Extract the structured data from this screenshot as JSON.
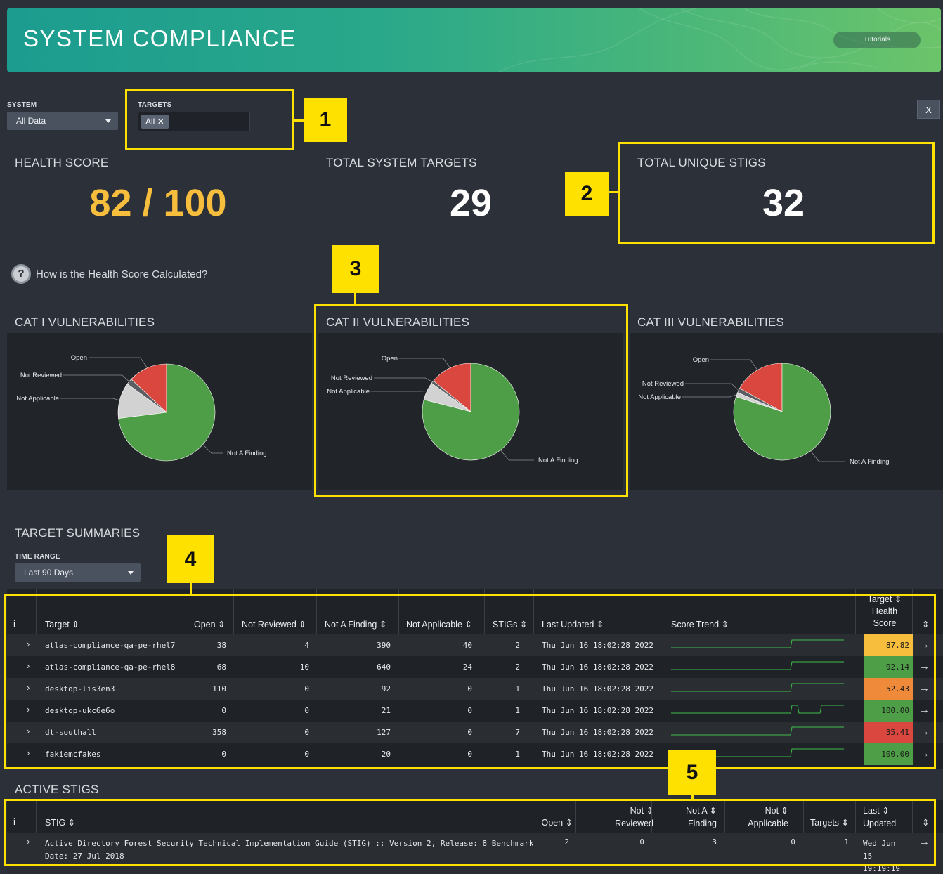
{
  "header": {
    "title": "SYSTEM COMPLIANCE",
    "tutorials_label": "Tutorials"
  },
  "filters": {
    "system_label": "SYSTEM",
    "system_value": "All Data",
    "targets_label": "TARGETS",
    "targets_chip": "All",
    "close_label": "X"
  },
  "stats": {
    "health_label": "HEALTH SCORE",
    "health_value": "82 / 100",
    "targets_label": "TOTAL SYSTEM TARGETS",
    "targets_value": "29",
    "stigs_label": "TOTAL UNIQUE STIGS",
    "stigs_value": "32"
  },
  "help_text": "How is the Health Score Calculated?",
  "colors": {
    "accent_score": "#f7bd3c",
    "open": "#d9473e",
    "not_reviewed": "#5a5d62",
    "not_applicable": "#d2d2d2",
    "not_a_finding": "#4e9d47"
  },
  "vulnerabilities": [
    {
      "title": "CAT I VULNERABILITIES"
    },
    {
      "title": "CAT II VULNERABILITIES"
    },
    {
      "title": "CAT III VULNERABILITIES"
    }
  ],
  "chart_data": [
    {
      "type": "pie",
      "title": "CAT I VULNERABILITIES",
      "labels": [
        "Open",
        "Not Reviewed",
        "Not Applicable",
        "Not A Finding"
      ],
      "values": [
        13,
        2,
        12,
        73
      ]
    },
    {
      "type": "pie",
      "title": "CAT II VULNERABILITIES",
      "labels": [
        "Open",
        "Not Reviewed",
        "Not Applicable",
        "Not A Finding"
      ],
      "values": [
        14,
        1,
        6,
        79
      ]
    },
    {
      "type": "pie",
      "title": "CAT III VULNERABILITIES",
      "labels": [
        "Open",
        "Not Reviewed",
        "Not Applicable",
        "Not A Finding"
      ],
      "values": [
        17,
        1.5,
        1.5,
        80
      ]
    }
  ],
  "summaries": {
    "title": "TARGET SUMMARIES",
    "time_range_label": "TIME RANGE",
    "time_range_value": "Last 90 Days",
    "info_label": "i",
    "headers": {
      "target": "Target ⇕",
      "open": "Open ⇕",
      "not_reviewed": "Not Reviewed ⇕",
      "not_a_finding": "Not A Finding ⇕",
      "not_applicable": "Not Applicable ⇕",
      "stigs": "STIGs ⇕",
      "last_updated": "Last Updated ⇕",
      "score_trend": "Score Trend ⇕",
      "target_l1": "Target ⇕",
      "target_l2": "Health",
      "target_l3": "Score",
      "sort": "⇕"
    },
    "rows": [
      {
        "target": "atlas-compliance-qa-pe-rhel7",
        "open": "38",
        "not_reviewed": "4",
        "not_a_finding": "390",
        "not_applicable": "40",
        "stigs": "2",
        "last_updated": "Thu Jun 16 18:02:28 2022",
        "score": "87.82",
        "score_color": "#f7bd3c"
      },
      {
        "target": "atlas-compliance-qa-pe-rhel8",
        "open": "68",
        "not_reviewed": "10",
        "not_a_finding": "640",
        "not_applicable": "24",
        "stigs": "2",
        "last_updated": "Thu Jun 16 18:02:28 2022",
        "score": "92.14",
        "score_color": "#4e9d47"
      },
      {
        "target": "desktop-lis3en3",
        "open": "110",
        "not_reviewed": "0",
        "not_a_finding": "92",
        "not_applicable": "0",
        "stigs": "1",
        "last_updated": "Thu Jun 16 18:02:28 2022",
        "score": "52.43",
        "score_color": "#ee8a3a"
      },
      {
        "target": "desktop-ukc6e6o",
        "open": "0",
        "not_reviewed": "0",
        "not_a_finding": "21",
        "not_applicable": "0",
        "stigs": "1",
        "last_updated": "Thu Jun 16 18:02:28 2022",
        "score": "100.00",
        "score_color": "#4e9d47"
      },
      {
        "target": "dt-southall",
        "open": "358",
        "not_reviewed": "0",
        "not_a_finding": "127",
        "not_applicable": "0",
        "stigs": "7",
        "last_updated": "Thu Jun 16 18:02:28 2022",
        "score": "35.41",
        "score_color": "#d9473e"
      },
      {
        "target": "fakiemcfakes",
        "open": "0",
        "not_reviewed": "0",
        "not_a_finding": "20",
        "not_applicable": "0",
        "stigs": "1",
        "last_updated": "Thu Jun 16 18:02:28 2022",
        "score": "100.00",
        "score_color": "#4e9d47"
      }
    ]
  },
  "active_stigs": {
    "title": "ACTIVE STIGS",
    "info_label": "i",
    "headers": {
      "stig": "STIG ⇕",
      "open": "Open ⇕",
      "not_reviewed_l1": "Not ⇕",
      "not_reviewed_l2": "Reviewed",
      "not_a_finding_l1": "Not A ⇕",
      "not_a_finding_l2": "Finding",
      "not_applicable_l1": "Not ⇕",
      "not_applicable_l2": "Applicable",
      "targets": "Targets ⇕",
      "last_updated_l1": "Last ⇕",
      "last_updated_l2": "Updated",
      "sort": "⇕"
    },
    "rows": [
      {
        "stig_l1": "Active Directory Forest Security Technical Implementation Guide (STIG) :: Version 2, Release: 8 Benchmark",
        "stig_l2": "Date: 27 Jul 2018",
        "open": "2",
        "not_reviewed": "0",
        "not_a_finding": "3",
        "not_applicable": "0",
        "targets": "1",
        "last_updated_l1": "Wed Jun",
        "last_updated_l2": "15",
        "last_updated_l3": "19:19:19"
      }
    ]
  },
  "annotations": [
    "1",
    "2",
    "3",
    "4",
    "5"
  ]
}
